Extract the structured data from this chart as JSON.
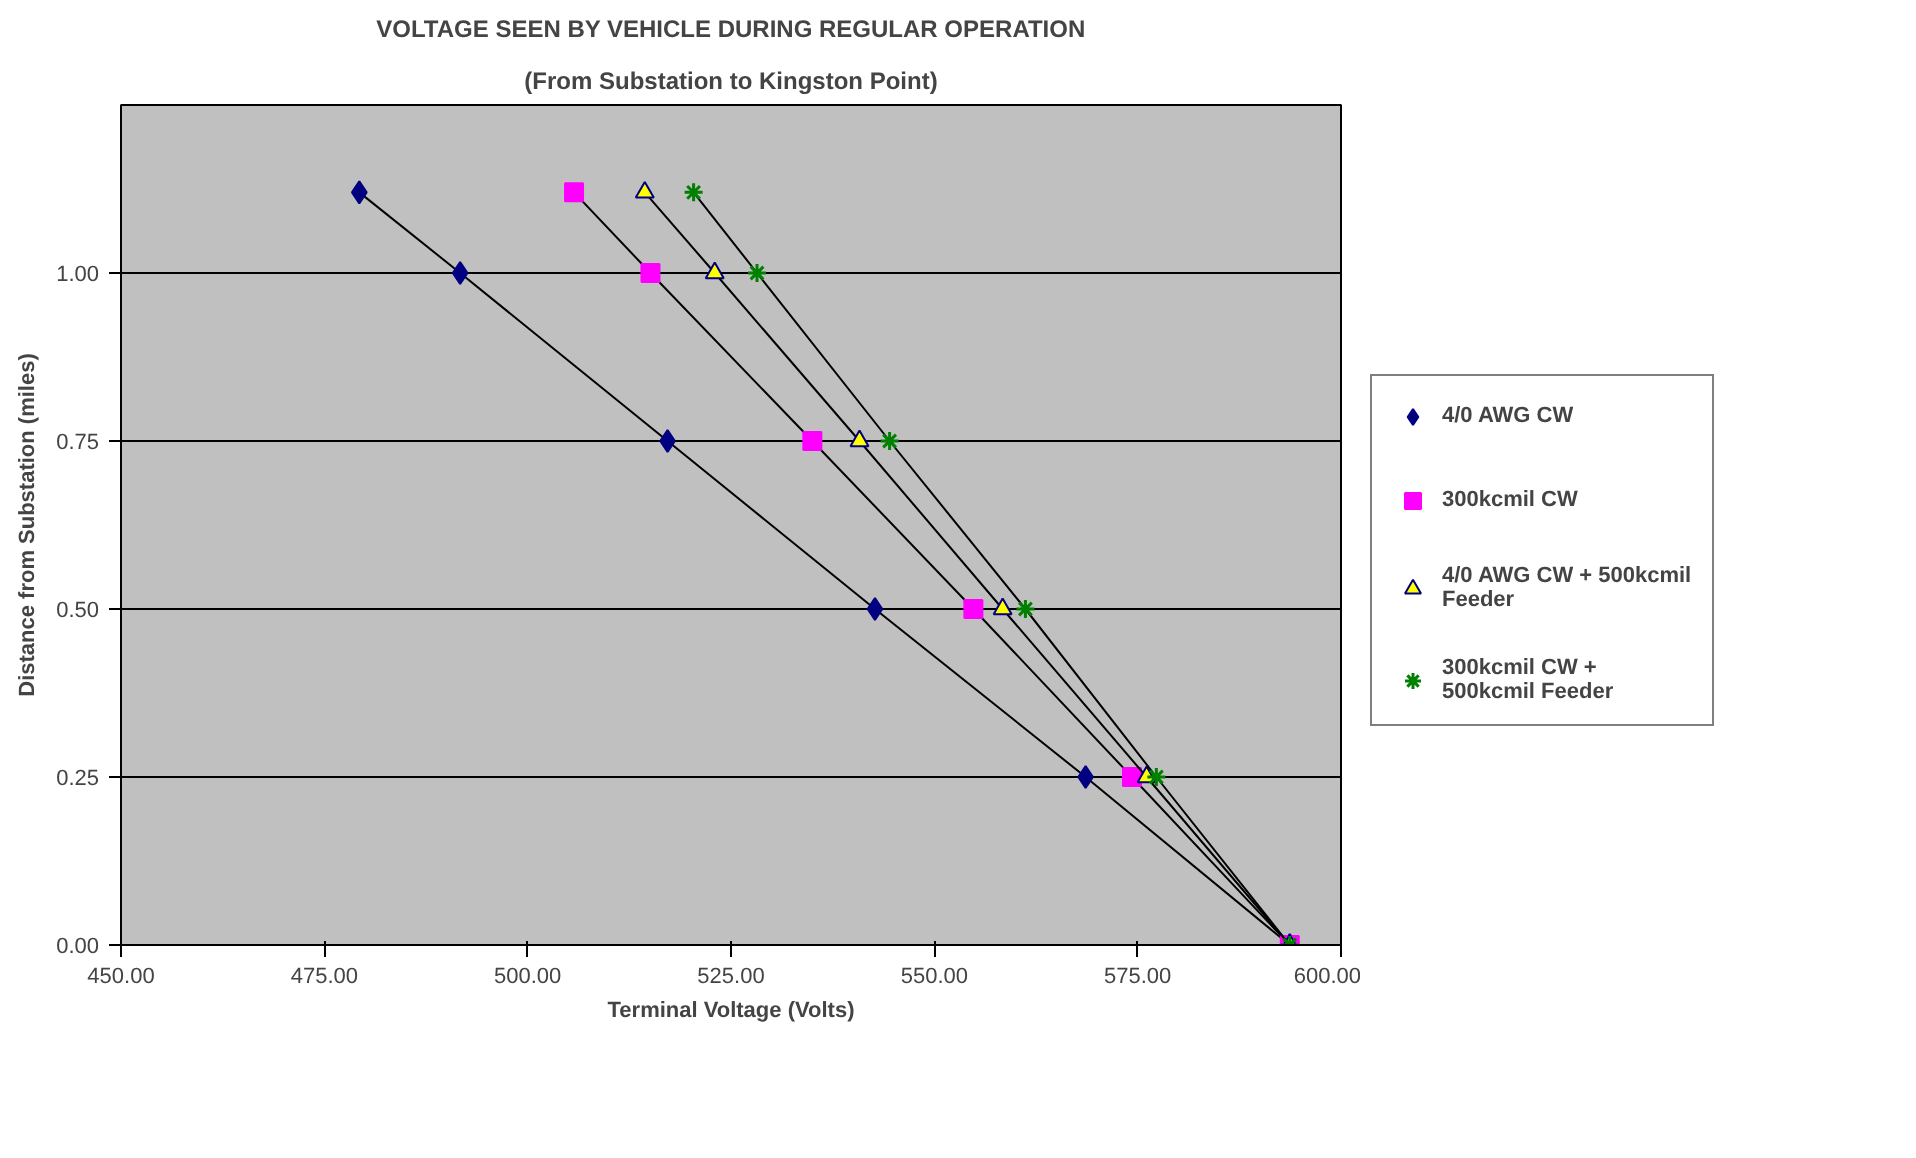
{
  "chart_data": {
    "type": "line",
    "title": "VOLTAGE SEEN BY VEHICLE DURING REGULAR OPERATION",
    "subtitle": "(From Substation to Kingston Point)",
    "xlabel": "Terminal Voltage (Volts)",
    "ylabel": "Distance from Substation (miles)",
    "xlim": [
      450,
      600
    ],
    "ylim": [
      0,
      1.25
    ],
    "xticks": [
      {
        "value": 450,
        "label": "450.00"
      },
      {
        "value": 475,
        "label": "475.00"
      },
      {
        "value": 500,
        "label": "500.00"
      },
      {
        "value": 525,
        "label": "525.00"
      },
      {
        "value": 550,
        "label": "550.00"
      },
      {
        "value": 575,
        "label": "575.00"
      },
      {
        "value": 600,
        "label": "600.00"
      }
    ],
    "yticks": [
      {
        "value": 0,
        "label": "0.00"
      },
      {
        "value": 0.25,
        "label": "0.25"
      },
      {
        "value": 0.5,
        "label": "0.50"
      },
      {
        "value": 0.75,
        "label": "0.75"
      },
      {
        "value": 1,
        "label": "1.00"
      }
    ],
    "grid": "y",
    "legend": "right",
    "series": [
      {
        "name": "4/0 AWG CW",
        "color": "#000080",
        "marker": "diamond",
        "x": [
          479.3,
          491.7,
          517.2,
          542.7,
          568.6,
          593.7
        ],
        "values": [
          1.12,
          1,
          0.75,
          0.5,
          0.25,
          0
        ]
      },
      {
        "name": "300kcmil CW",
        "color": "#ff00ff",
        "marker": "square",
        "x": [
          505.7,
          515.1,
          535.0,
          554.8,
          574.3,
          593.7
        ],
        "values": [
          1.12,
          1,
          0.75,
          0.5,
          0.25,
          0
        ]
      },
      {
        "name": "4/0 AWG CW + 500kcmil Feeder",
        "color": "#ffff00",
        "marker": "triangle",
        "x": [
          514.4,
          523.0,
          540.8,
          558.4,
          576.1,
          593.7
        ],
        "values": [
          1.12,
          1,
          0.75,
          0.5,
          0.25,
          0
        ]
      },
      {
        "name": "300kcmil CW + 500kcmil Feeder",
        "color": "#008000",
        "marker": "cross",
        "x": [
          520.4,
          528.2,
          544.5,
          561.2,
          577.3,
          593.7
        ],
        "values": [
          1.12,
          1,
          0.75,
          0.5,
          0.25,
          0
        ]
      }
    ]
  }
}
